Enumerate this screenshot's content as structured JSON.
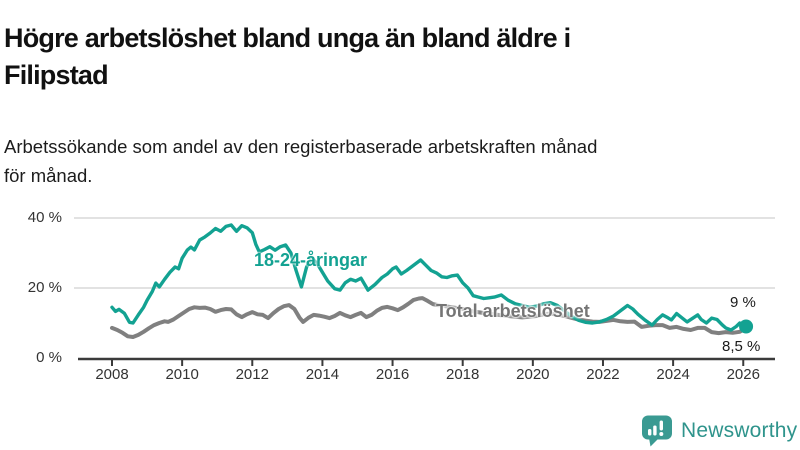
{
  "header": {
    "title": "Högre arbetslöshet bland unga än bland äldre i Filipstad",
    "title_line1": "Högre arbetslöshet bland unga än bland äldre i",
    "title_line2": "Filipstad",
    "subtitle": "Arbetssökande som andel av den registerbaserade arbetskraften månad för månad.",
    "subtitle_line1": "Arbetssökande som andel av den registerbaserade arbetskraften månad",
    "subtitle_line2": "för månad."
  },
  "footer": {
    "brand": "Newsworthy",
    "brand_color": "#3a9a92",
    "icon": "bar-chart-speech-bubble"
  },
  "chart_data": {
    "type": "line",
    "title": "Högre arbetslöshet bland unga än bland äldre i Filipstad",
    "subtitle": "Arbetssökande som andel av den registerbaserade arbetskraften månad för månad.",
    "unit": "%",
    "grid": "horizontal",
    "x_axis": {
      "ticks": [
        2008,
        2010,
        2012,
        2014,
        2016,
        2018,
        2020,
        2022,
        2024,
        2026
      ],
      "range": [
        2008,
        2026.3
      ]
    },
    "y_axis": {
      "tick_values": [
        0,
        20,
        40
      ],
      "tick_labels": [
        "0 %",
        "20 %",
        "40 %"
      ],
      "range": [
        0,
        42
      ]
    },
    "series": [
      {
        "name": "18-24-åringar",
        "color": "#13a292",
        "end_label": "9 %",
        "end_value": 9,
        "points": [
          [
            2008.0,
            14.5
          ],
          [
            2008.1,
            13.3
          ],
          [
            2008.2,
            13.9
          ],
          [
            2008.35,
            12.8
          ],
          [
            2008.5,
            10.2
          ],
          [
            2008.6,
            10.0
          ],
          [
            2008.75,
            12.3
          ],
          [
            2008.9,
            14.5
          ],
          [
            2009.0,
            16.5
          ],
          [
            2009.15,
            19.0
          ],
          [
            2009.25,
            21.4
          ],
          [
            2009.35,
            20.3
          ],
          [
            2009.5,
            22.5
          ],
          [
            2009.65,
            24.5
          ],
          [
            2009.8,
            26.0
          ],
          [
            2009.9,
            25.5
          ],
          [
            2010.0,
            28.5
          ],
          [
            2010.15,
            30.9
          ],
          [
            2010.25,
            31.7
          ],
          [
            2010.35,
            30.9
          ],
          [
            2010.5,
            33.7
          ],
          [
            2010.65,
            34.6
          ],
          [
            2010.8,
            35.7
          ],
          [
            2010.95,
            37.0
          ],
          [
            2011.1,
            36.2
          ],
          [
            2011.25,
            37.6
          ],
          [
            2011.4,
            38.0
          ],
          [
            2011.55,
            36.2
          ],
          [
            2011.7,
            37.8
          ],
          [
            2011.85,
            37.2
          ],
          [
            2012.0,
            35.8
          ],
          [
            2012.1,
            32.5
          ],
          [
            2012.2,
            30.3
          ],
          [
            2012.35,
            31.0
          ],
          [
            2012.5,
            31.8
          ],
          [
            2012.65,
            30.8
          ],
          [
            2012.8,
            31.8
          ],
          [
            2012.95,
            32.3
          ],
          [
            2013.1,
            30.0
          ],
          [
            2013.25,
            25.0
          ],
          [
            2013.4,
            20.3
          ],
          [
            2013.55,
            26.0
          ],
          [
            2013.7,
            28.5
          ],
          [
            2013.85,
            27.0
          ],
          [
            2014.0,
            24.5
          ],
          [
            2014.15,
            22.0
          ],
          [
            2014.35,
            19.8
          ],
          [
            2014.5,
            19.4
          ],
          [
            2014.65,
            21.5
          ],
          [
            2014.8,
            22.5
          ],
          [
            2014.95,
            22.0
          ],
          [
            2015.1,
            22.8
          ],
          [
            2015.3,
            19.4
          ],
          [
            2015.5,
            21.0
          ],
          [
            2015.7,
            23.0
          ],
          [
            2015.85,
            24.0
          ],
          [
            2016.0,
            25.5
          ],
          [
            2016.1,
            26.0
          ],
          [
            2016.25,
            24.0
          ],
          [
            2016.4,
            25.0
          ],
          [
            2016.6,
            26.5
          ],
          [
            2016.8,
            28.0
          ],
          [
            2016.95,
            26.5
          ],
          [
            2017.1,
            25.0
          ],
          [
            2017.25,
            24.3
          ],
          [
            2017.4,
            23.2
          ],
          [
            2017.55,
            23.0
          ],
          [
            2017.7,
            23.5
          ],
          [
            2017.85,
            23.7
          ],
          [
            2018.0,
            21.5
          ],
          [
            2018.15,
            20.0
          ],
          [
            2018.3,
            17.8
          ],
          [
            2018.45,
            17.4
          ],
          [
            2018.6,
            17.0
          ],
          [
            2018.75,
            17.2
          ],
          [
            2018.9,
            17.4
          ],
          [
            2019.1,
            18.0
          ],
          [
            2019.3,
            16.5
          ],
          [
            2019.5,
            15.5
          ],
          [
            2019.7,
            15.0
          ],
          [
            2019.9,
            14.5
          ],
          [
            2020.1,
            14.8
          ],
          [
            2020.3,
            15.5
          ],
          [
            2020.5,
            15.8
          ],
          [
            2020.7,
            15.0
          ],
          [
            2020.9,
            13.5
          ],
          [
            2021.1,
            12.0
          ],
          [
            2021.3,
            10.8
          ],
          [
            2021.5,
            10.2
          ],
          [
            2021.7,
            10.0
          ],
          [
            2021.9,
            10.3
          ],
          [
            2022.1,
            11.0
          ],
          [
            2022.3,
            12.0
          ],
          [
            2022.5,
            13.5
          ],
          [
            2022.7,
            15.0
          ],
          [
            2022.85,
            14.0
          ],
          [
            2023.0,
            12.5
          ],
          [
            2023.2,
            10.8
          ],
          [
            2023.4,
            9.4
          ],
          [
            2023.55,
            11.0
          ],
          [
            2023.7,
            12.3
          ],
          [
            2023.85,
            11.5
          ],
          [
            2023.95,
            10.9
          ],
          [
            2024.1,
            12.7
          ],
          [
            2024.25,
            11.5
          ],
          [
            2024.4,
            10.3
          ],
          [
            2024.55,
            11.3
          ],
          [
            2024.7,
            12.3
          ],
          [
            2024.8,
            11.0
          ],
          [
            2024.95,
            10.0
          ],
          [
            2025.1,
            11.4
          ],
          [
            2025.25,
            11.0
          ],
          [
            2025.4,
            9.5
          ],
          [
            2025.5,
            8.6
          ],
          [
            2025.65,
            8.0
          ],
          [
            2025.8,
            9.0
          ],
          [
            2025.9,
            10.0
          ],
          [
            2026.0,
            9.3
          ],
          [
            2026.08,
            9.0
          ]
        ]
      },
      {
        "name": "Total arbetslöshet",
        "color": "#808080",
        "end_label": "8,5 %",
        "end_value": 8.5,
        "points": [
          [
            2008.0,
            8.6
          ],
          [
            2008.15,
            8.0
          ],
          [
            2008.3,
            7.2
          ],
          [
            2008.45,
            6.2
          ],
          [
            2008.6,
            6.0
          ],
          [
            2008.75,
            6.6
          ],
          [
            2008.9,
            7.5
          ],
          [
            2009.05,
            8.5
          ],
          [
            2009.2,
            9.4
          ],
          [
            2009.35,
            10.0
          ],
          [
            2009.5,
            10.5
          ],
          [
            2009.6,
            10.3
          ],
          [
            2009.75,
            11.0
          ],
          [
            2009.9,
            12.0
          ],
          [
            2010.05,
            13.0
          ],
          [
            2010.2,
            14.0
          ],
          [
            2010.35,
            14.5
          ],
          [
            2010.5,
            14.3
          ],
          [
            2010.65,
            14.4
          ],
          [
            2010.8,
            14.0
          ],
          [
            2010.95,
            13.2
          ],
          [
            2011.1,
            13.7
          ],
          [
            2011.25,
            14.0
          ],
          [
            2011.4,
            13.9
          ],
          [
            2011.55,
            12.5
          ],
          [
            2011.7,
            11.7
          ],
          [
            2011.85,
            12.5
          ],
          [
            2012.0,
            13.1
          ],
          [
            2012.15,
            12.5
          ],
          [
            2012.3,
            12.3
          ],
          [
            2012.45,
            11.4
          ],
          [
            2012.6,
            12.8
          ],
          [
            2012.75,
            14.0
          ],
          [
            2012.9,
            14.8
          ],
          [
            2013.05,
            15.1
          ],
          [
            2013.2,
            14.0
          ],
          [
            2013.35,
            11.5
          ],
          [
            2013.45,
            10.3
          ],
          [
            2013.6,
            11.5
          ],
          [
            2013.75,
            12.3
          ],
          [
            2013.9,
            12.1
          ],
          [
            2014.05,
            11.8
          ],
          [
            2014.2,
            11.4
          ],
          [
            2014.35,
            12.0
          ],
          [
            2014.5,
            12.9
          ],
          [
            2014.65,
            12.2
          ],
          [
            2014.8,
            11.7
          ],
          [
            2014.95,
            12.3
          ],
          [
            2015.1,
            12.9
          ],
          [
            2015.25,
            11.7
          ],
          [
            2015.4,
            12.3
          ],
          [
            2015.55,
            13.5
          ],
          [
            2015.7,
            14.3
          ],
          [
            2015.85,
            14.6
          ],
          [
            2016.0,
            14.2
          ],
          [
            2016.15,
            13.7
          ],
          [
            2016.3,
            14.5
          ],
          [
            2016.45,
            15.5
          ],
          [
            2016.6,
            16.6
          ],
          [
            2016.75,
            17.0
          ],
          [
            2016.85,
            17.1
          ],
          [
            2017.0,
            16.3
          ],
          [
            2017.15,
            15.4
          ],
          [
            2017.3,
            15.1
          ],
          [
            2017.5,
            14.8
          ],
          [
            2017.7,
            14.5
          ],
          [
            2017.9,
            14.2
          ],
          [
            2018.1,
            13.8
          ],
          [
            2018.3,
            13.3
          ],
          [
            2018.5,
            13.0
          ],
          [
            2018.7,
            12.7
          ],
          [
            2018.9,
            12.5
          ],
          [
            2019.1,
            12.2
          ],
          [
            2019.3,
            12.0
          ],
          [
            2019.5,
            11.8
          ],
          [
            2019.7,
            11.6
          ],
          [
            2019.9,
            11.8
          ],
          [
            2020.1,
            12.0
          ],
          [
            2020.3,
            12.5
          ],
          [
            2020.5,
            12.7
          ],
          [
            2020.7,
            12.4
          ],
          [
            2020.9,
            12.0
          ],
          [
            2021.1,
            11.5
          ],
          [
            2021.3,
            11.0
          ],
          [
            2021.5,
            10.7
          ],
          [
            2021.7,
            10.4
          ],
          [
            2021.9,
            10.3
          ],
          [
            2022.1,
            10.6
          ],
          [
            2022.3,
            10.9
          ],
          [
            2022.5,
            10.5
          ],
          [
            2022.7,
            10.3
          ],
          [
            2022.9,
            10.4
          ],
          [
            2023.1,
            8.9
          ],
          [
            2023.3,
            9.2
          ],
          [
            2023.5,
            9.4
          ],
          [
            2023.7,
            9.4
          ],
          [
            2023.9,
            8.6
          ],
          [
            2024.1,
            8.9
          ],
          [
            2024.3,
            8.3
          ],
          [
            2024.5,
            8.0
          ],
          [
            2024.7,
            8.6
          ],
          [
            2024.9,
            8.6
          ],
          [
            2025.1,
            7.4
          ],
          [
            2025.3,
            7.1
          ],
          [
            2025.5,
            7.4
          ],
          [
            2025.7,
            7.2
          ],
          [
            2025.9,
            7.5
          ],
          [
            2026.08,
            8.5
          ]
        ]
      }
    ]
  }
}
